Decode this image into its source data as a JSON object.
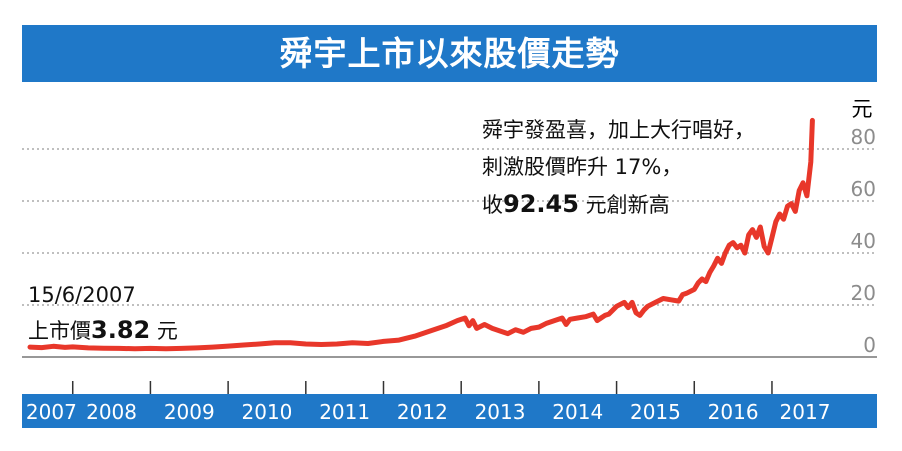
{
  "title": "舜宇上市以來股價走勢",
  "annotation_right": {
    "line1": "舜宇發盈喜，加上大行唱好，",
    "line2": "刺激股價昨升 17%，",
    "line3_prefix": "收",
    "line3_value": "92.45",
    "line3_suffix": " 元創新高"
  },
  "annotation_left": {
    "date": "15/6/2007",
    "label_prefix": "上市價",
    "value": "3.82",
    "label_suffix": " 元"
  },
  "colors": {
    "title_bar": "#1f78c8",
    "axis_bar": "#1f78c8",
    "line": "#e8372a",
    "grid": "#999999",
    "tick_label": "#8c8c8c"
  },
  "chart_data": {
    "type": "line",
    "title": "舜宇上市以來股價走勢",
    "y_unit": "元",
    "ylim": [
      0,
      100
    ],
    "yticks": [
      0,
      20,
      40,
      60,
      80
    ],
    "xlim": [
      2007.45,
      2017.85
    ],
    "year_labels": [
      "2007",
      "2008",
      "2009",
      "2010",
      "2011",
      "2012",
      "2013",
      "2014",
      "2015",
      "2016",
      "2017"
    ],
    "grid": true,
    "series": [
      {
        "x": [
          2007.45,
          2007.6,
          2007.75,
          2007.9,
          2008.0,
          2008.2,
          2008.4,
          2008.6,
          2008.8,
          2009.0,
          2009.2,
          2009.4,
          2009.6,
          2009.8,
          2010.0,
          2010.2,
          2010.4,
          2010.6,
          2010.8,
          2011.0,
          2011.2,
          2011.4,
          2011.6,
          2011.8,
          2012.0,
          2012.2,
          2012.4,
          2012.6,
          2012.8,
          2012.95,
          2013.05,
          2013.1,
          2013.15,
          2013.2,
          2013.3,
          2013.4,
          2013.5,
          2013.6,
          2013.7,
          2013.8,
          2013.9,
          2014.0,
          2014.1,
          2014.2,
          2014.3,
          2014.35,
          2014.4,
          2014.5,
          2014.6,
          2014.7,
          2014.75,
          2014.8,
          2014.85,
          2014.9,
          2015.0,
          2015.1,
          2015.15,
          2015.2,
          2015.25,
          2015.3,
          2015.35,
          2015.4,
          2015.5,
          2015.6,
          2015.7,
          2015.8,
          2015.85,
          2015.9,
          2016.0,
          2016.05,
          2016.1,
          2016.15,
          2016.2,
          2016.25,
          2016.3,
          2016.35,
          2016.4,
          2016.45,
          2016.5,
          2016.55,
          2016.6,
          2016.65,
          2016.7,
          2016.75,
          2016.8,
          2016.85,
          2016.9,
          2016.95,
          2017.0,
          2017.05,
          2017.1,
          2017.15,
          2017.2,
          2017.25,
          2017.3,
          2017.35,
          2017.4,
          2017.45,
          2017.5,
          2017.52
        ],
        "values": [
          3.82,
          3.6,
          4.1,
          3.7,
          3.9,
          3.5,
          3.4,
          3.3,
          3.2,
          3.3,
          3.2,
          3.3,
          3.5,
          3.8,
          4.2,
          4.6,
          5.0,
          5.5,
          5.5,
          5.0,
          4.8,
          5.0,
          5.5,
          5.2,
          6.0,
          6.5,
          8.0,
          10.0,
          12.0,
          14.0,
          15.0,
          12.0,
          14.0,
          11.0,
          12.5,
          11.0,
          10.0,
          9.0,
          10.5,
          9.5,
          11.0,
          11.5,
          13.0,
          14.0,
          15.0,
          12.5,
          14.5,
          15.0,
          15.5,
          16.5,
          14.0,
          15.0,
          16.0,
          16.5,
          19.5,
          21.0,
          19.0,
          21.0,
          17.0,
          16.0,
          18.0,
          19.5,
          21.0,
          22.5,
          22.0,
          21.5,
          24.0,
          24.5,
          26.0,
          28.5,
          30.0,
          29.0,
          32.5,
          35.0,
          38.0,
          36.0,
          40.0,
          43.0,
          44.0,
          42.0,
          43.0,
          40.0,
          47.0,
          49.0,
          46.0,
          50.0,
          42.5,
          40.0,
          46.0,
          52.0,
          55.0,
          53.0,
          58.0,
          59.0,
          56.0,
          64.0,
          67.0,
          62.0,
          75.0,
          91.0
        ]
      }
    ]
  }
}
